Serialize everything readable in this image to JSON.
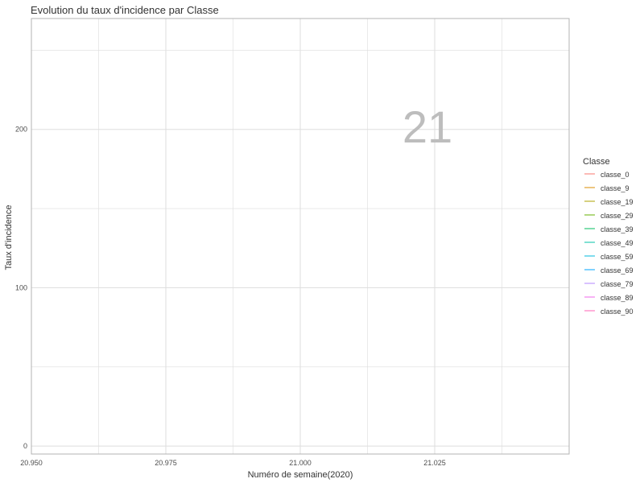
{
  "chart_data": {
    "type": "line",
    "title": "Evolution du taux d'incidence par Classe",
    "xlabel": "Numéro de semaine(2020)",
    "ylabel": "Taux d'incidence",
    "frame_label": "21",
    "xlim": [
      20.95,
      21.05
    ],
    "ylim": [
      -5,
      270
    ],
    "x_ticks": [
      20.95,
      20.975,
      21.0,
      21.025
    ],
    "x_tick_labels": [
      "20.950",
      "20.975",
      "21.000",
      "21.025"
    ],
    "x_minor_ticks": [
      20.9625,
      20.9875,
      21.0125,
      21.0375
    ],
    "y_ticks": [
      0,
      100,
      200
    ],
    "y_tick_labels": [
      "0",
      "100",
      "200"
    ],
    "y_minor_ticks": [
      50,
      150,
      250
    ],
    "grid": true,
    "legend": {
      "title": "Classe",
      "placement": "right"
    },
    "series": [
      {
        "name": "classe_0",
        "color": "#F8766D",
        "x": [],
        "y": []
      },
      {
        "name": "classe_9",
        "color": "#DB8E00",
        "x": [],
        "y": []
      },
      {
        "name": "classe_19",
        "color": "#AEA200",
        "x": [],
        "y": []
      },
      {
        "name": "classe_29",
        "color": "#64B200",
        "x": [],
        "y": []
      },
      {
        "name": "classe_39",
        "color": "#00BD5C",
        "x": [],
        "y": []
      },
      {
        "name": "classe_49",
        "color": "#00C1A7",
        "x": [],
        "y": []
      },
      {
        "name": "classe_59",
        "color": "#00BADE",
        "x": [],
        "y": []
      },
      {
        "name": "classe_69",
        "color": "#00A6FF",
        "x": [],
        "y": []
      },
      {
        "name": "classe_79",
        "color": "#B385FF",
        "x": [],
        "y": []
      },
      {
        "name": "classe_89",
        "color": "#EF67EB",
        "x": [],
        "y": []
      },
      {
        "name": "classe_90",
        "color": "#FF63B6",
        "x": [],
        "y": []
      }
    ]
  },
  "colors": {
    "grid": "#dddddd",
    "panel_border": "#b3b3b3",
    "text": "#333333",
    "tick_text": "#4d4d4d",
    "frame_label": "#bdbdbd"
  }
}
